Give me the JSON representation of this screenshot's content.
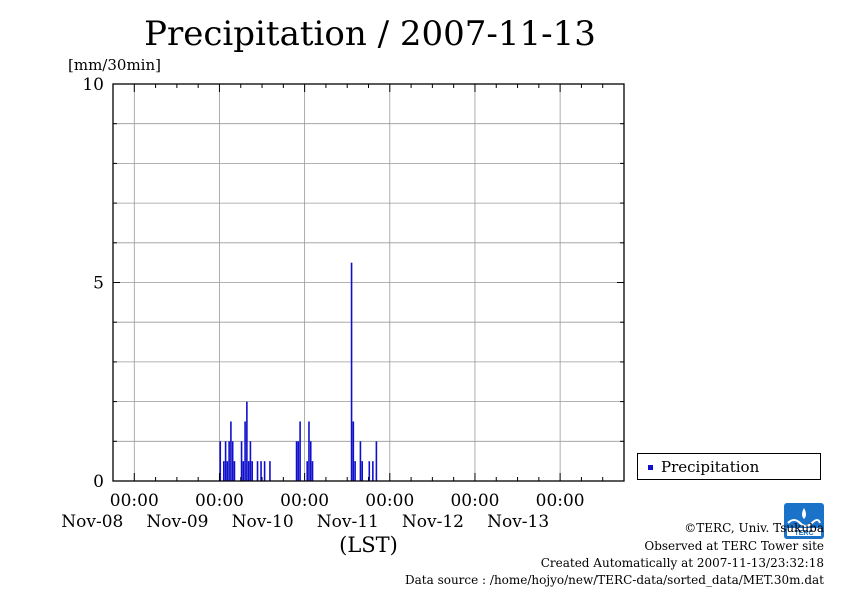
{
  "title": "Precipitation / 2007-11-13",
  "chart_data": {
    "type": "bar",
    "title": "Precipitation / 2007-11-13",
    "ylabel": "[mm/30min]",
    "xlabel": "(LST)",
    "ylim": [
      0,
      10
    ],
    "yticks": [
      "0",
      "5",
      "10"
    ],
    "xlim": [
      "2007-11-07 18:00",
      "2007-11-13 18:00"
    ],
    "xticks": [
      {
        "date": "2007-11-08 00:00",
        "time": "00:00",
        "label": "Nov-08"
      },
      {
        "date": "2007-11-09 00:00",
        "time": "00:00",
        "label": "Nov-09"
      },
      {
        "date": "2007-11-10 00:00",
        "time": "00:00",
        "label": "Nov-10"
      },
      {
        "date": "2007-11-11 00:00",
        "time": "00:00",
        "label": "Nov-11"
      },
      {
        "date": "2007-11-12 00:00",
        "time": "00:00",
        "label": "Nov-12"
      },
      {
        "date": "2007-11-13 00:00",
        "time": "00:00",
        "label": "Nov-13"
      }
    ],
    "grid": true,
    "legend_position": "bottom-right, outside plot",
    "series": [
      {
        "name": "Precipitation",
        "color": "#1010cc",
        "points": [
          [
            "2007-11-09 00:00",
            1.0
          ],
          [
            "2007-11-09 01:00",
            0.5
          ],
          [
            "2007-11-09 01:30",
            1.0
          ],
          [
            "2007-11-09 02:00",
            0.5
          ],
          [
            "2007-11-09 02:30",
            1.0
          ],
          [
            "2007-11-09 03:00",
            1.5
          ],
          [
            "2007-11-09 03:30",
            1.0
          ],
          [
            "2007-11-09 04:00",
            0.5
          ],
          [
            "2007-11-09 06:00",
            1.0
          ],
          [
            "2007-11-09 06:30",
            0.5
          ],
          [
            "2007-11-09 07:00",
            1.5
          ],
          [
            "2007-11-09 07:30",
            2.0
          ],
          [
            "2007-11-09 08:00",
            0.5
          ],
          [
            "2007-11-09 08:30",
            1.0
          ],
          [
            "2007-11-09 09:00",
            0.5
          ],
          [
            "2007-11-09 10:30",
            0.5
          ],
          [
            "2007-11-09 11:30",
            0.5
          ],
          [
            "2007-11-09 12:30",
            0.5
          ],
          [
            "2007-11-09 14:00",
            0.5
          ],
          [
            "2007-11-09 21:30",
            1.0
          ],
          [
            "2007-11-09 22:00",
            1.0
          ],
          [
            "2007-11-09 22:30",
            1.5
          ],
          [
            "2007-11-10 00:30",
            0.5
          ],
          [
            "2007-11-10 01:00",
            1.5
          ],
          [
            "2007-11-10 01:30",
            1.0
          ],
          [
            "2007-11-10 02:00",
            0.5
          ],
          [
            "2007-11-10 13:00",
            5.5
          ],
          [
            "2007-11-10 13:30",
            1.5
          ],
          [
            "2007-11-10 14:00",
            0.5
          ],
          [
            "2007-11-10 15:30",
            1.0
          ],
          [
            "2007-11-10 16:00",
            0.5
          ],
          [
            "2007-11-10 18:00",
            0.5
          ],
          [
            "2007-11-10 19:00",
            0.5
          ],
          [
            "2007-11-10 20:00",
            1.0
          ]
        ]
      }
    ]
  },
  "legend": {
    "label": "Precipitation"
  },
  "footer": {
    "copyright": "©TERC, Univ. Tsukuba",
    "observed": "Observed at TERC Tower site",
    "created": "Created Automatically at 2007-11-13/23:32:18",
    "source": "Data source : /home/hojyo/new/TERC-data/sorted_data/MET.30m.dat"
  },
  "logo": {
    "text": "TERC",
    "color": "#1a73c9"
  }
}
